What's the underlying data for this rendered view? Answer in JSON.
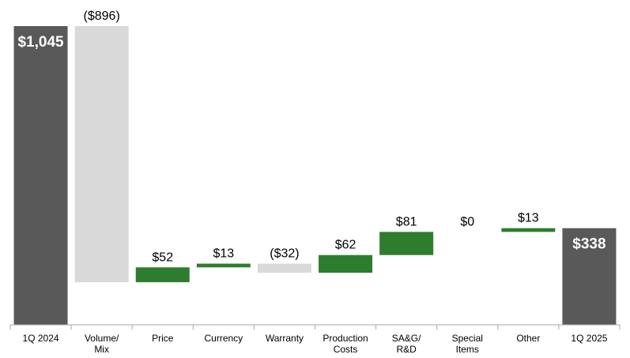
{
  "chart_data": {
    "type": "waterfall",
    "title": "",
    "units": "$",
    "categories": [
      {
        "label": [
          "1Q 2024"
        ],
        "value": 1045,
        "kind": "total",
        "data_label": "$1,045"
      },
      {
        "label": [
          "Volume/",
          "Mix"
        ],
        "value": -896,
        "kind": "delta",
        "data_label": "($896)"
      },
      {
        "label": [
          "Price"
        ],
        "value": 52,
        "kind": "delta",
        "data_label": "$52"
      },
      {
        "label": [
          "Currency"
        ],
        "value": 13,
        "kind": "delta",
        "data_label": "$13"
      },
      {
        "label": [
          "Warranty"
        ],
        "value": -32,
        "kind": "delta",
        "data_label": "($32)"
      },
      {
        "label": [
          "Production",
          "Costs"
        ],
        "value": 62,
        "kind": "delta",
        "data_label": "$62"
      },
      {
        "label": [
          "SA&G/",
          "R&D"
        ],
        "value": 81,
        "kind": "delta",
        "data_label": "$81"
      },
      {
        "label": [
          "Special",
          "Items"
        ],
        "value": 0,
        "kind": "delta",
        "data_label": "$0"
      },
      {
        "label": [
          "Other"
        ],
        "value": 13,
        "kind": "delta",
        "data_label": "$13"
      },
      {
        "label": [
          "1Q 2025"
        ],
        "value": 338,
        "kind": "total",
        "data_label": "$338"
      }
    ],
    "colors": {
      "total": "#595959",
      "increase": "#2e7d2e",
      "decrease": "#d9d9d9",
      "axis": "#a6a6a6"
    },
    "ylim": [
      0,
      1045
    ],
    "grid": false,
    "legend": "none"
  }
}
